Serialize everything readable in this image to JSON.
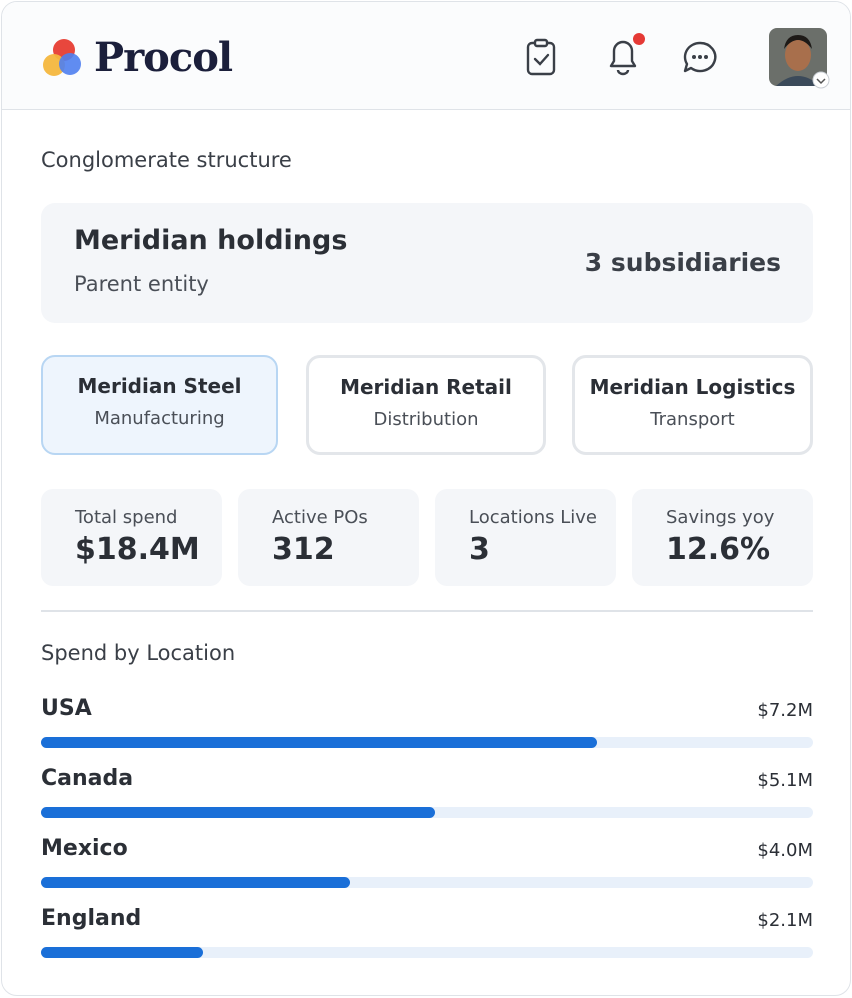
{
  "header": {
    "logo": "Procol"
  },
  "section_title": "Conglomerate structure",
  "parent": {
    "name": "Meridian holdings",
    "role": "Parent entity",
    "subsidiary_count": "3 subsidiaries"
  },
  "subsidiaries": [
    {
      "name": "Meridian Steel",
      "sector": "Manufacturing",
      "selected": true
    },
    {
      "name": "Meridian Retail",
      "sector": "Distribution",
      "selected": false
    },
    {
      "name": "Meridian Logistics",
      "sector": "Transport",
      "selected": false
    }
  ],
  "stats": [
    {
      "label": "Total spend",
      "value": "$18.4M"
    },
    {
      "label": "Active POs",
      "value": "312"
    },
    {
      "label": "Locations Live",
      "value": "3"
    },
    {
      "label": "Savings yoy",
      "value": "12.6%"
    }
  ],
  "spend_by_location": {
    "title": "Spend by Location",
    "categories": [
      "USA",
      "Canada",
      "Mexico",
      "England"
    ],
    "values": [
      7200000,
      5100000,
      4000000,
      2100000
    ],
    "value_labels": [
      "$7.2M",
      "$5.1M",
      "$4.0M",
      "$2.1M"
    ],
    "xlim": [
      0,
      10000000
    ],
    "color": "#1a6fd8"
  }
}
